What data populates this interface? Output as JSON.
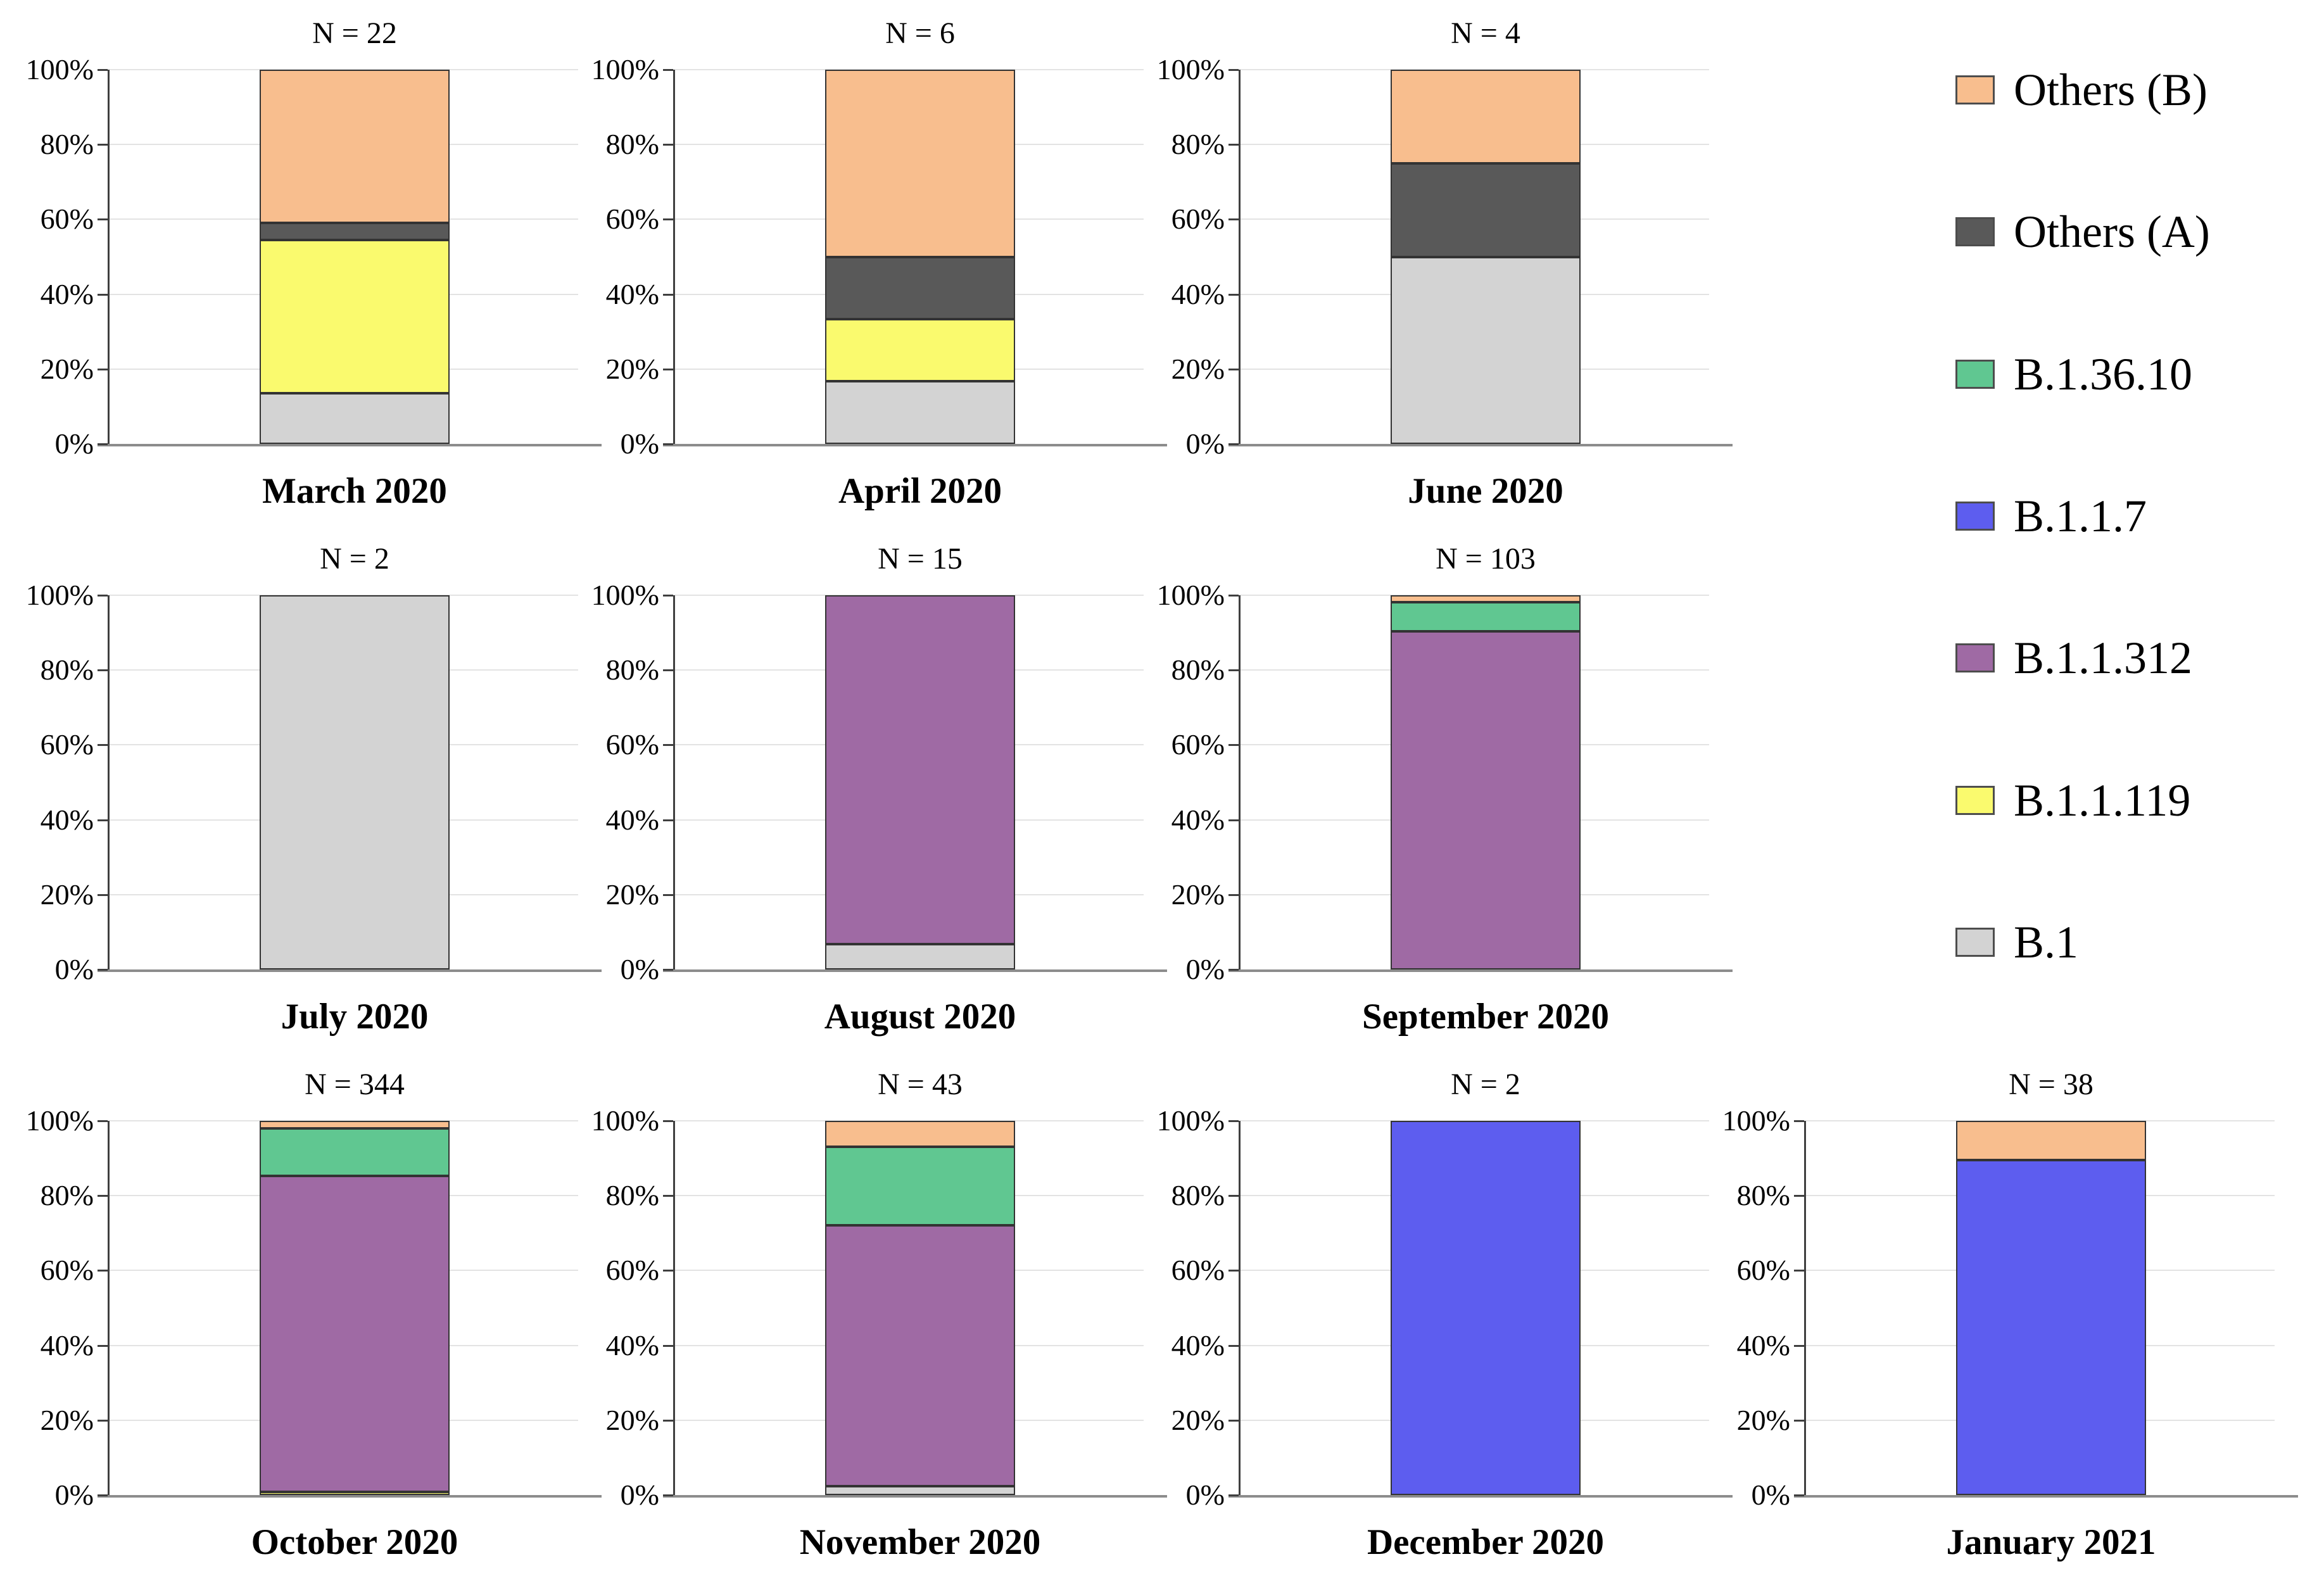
{
  "figure": {
    "background": "#ffffff",
    "description": "Monthly 100% stacked bar charts of lineage frequencies, March 2020 - January 2021"
  },
  "chart_data": {
    "type": "bar",
    "subtype": "stacked-100-percent",
    "grid_on": true,
    "ylim": [
      0,
      100
    ],
    "yticks": [
      "0%",
      "20%",
      "40%",
      "60%",
      "80%",
      "100%"
    ],
    "legend_position": "right",
    "series_order_bottom_to_top": [
      "B.1",
      "B.1.1.119",
      "B.1.1.312",
      "B.1.1.7",
      "B.1.36.10",
      "Others (A)",
      "Others (B)"
    ],
    "colors": {
      "Others (B)": "#F8BE8E",
      "Others (A)": "#595959",
      "B.1.36.10": "#60C791",
      "B.1.1.7": "#5D5DEF",
      "B.1.1.312": "#9F6AA4",
      "B.1.1.119": "#FAFA6E",
      "B.1": "#D3D3D3"
    },
    "legend_entries": [
      "Others (B)",
      "Others (A)",
      "B.1.36.10",
      "B.1.1.7",
      "B.1.1.312",
      "B.1.1.119",
      "B.1"
    ],
    "charts": [
      {
        "month": "March 2020",
        "n_label": "N = 22",
        "n": 22,
        "row": 0,
        "col": 0,
        "segments": [
          {
            "series": "B.1",
            "value": 13.6
          },
          {
            "series": "B.1.1.119",
            "value": 40.9
          },
          {
            "series": "Others (A)",
            "value": 4.6
          },
          {
            "series": "Others (B)",
            "value": 40.9
          }
        ]
      },
      {
        "month": "April 2020",
        "n_label": "N = 6",
        "n": 6,
        "row": 0,
        "col": 1,
        "segments": [
          {
            "series": "B.1",
            "value": 16.7
          },
          {
            "series": "B.1.1.119",
            "value": 16.6
          },
          {
            "series": "Others (A)",
            "value": 16.7
          },
          {
            "series": "Others (B)",
            "value": 50.0
          }
        ]
      },
      {
        "month": "June 2020",
        "n_label": "N = 4",
        "n": 4,
        "row": 0,
        "col": 2,
        "segments": [
          {
            "series": "B.1",
            "value": 50.0
          },
          {
            "series": "Others (A)",
            "value": 25.0
          },
          {
            "series": "Others (B)",
            "value": 25.0
          }
        ]
      },
      {
        "month": "July 2020",
        "n_label": "N = 2",
        "n": 2,
        "row": 1,
        "col": 0,
        "segments": [
          {
            "series": "B.1",
            "value": 100.0
          }
        ]
      },
      {
        "month": "August 2020",
        "n_label": "N = 15",
        "n": 15,
        "row": 1,
        "col": 1,
        "segments": [
          {
            "series": "B.1",
            "value": 6.7
          },
          {
            "series": "B.1.1.312",
            "value": 93.3
          }
        ]
      },
      {
        "month": "September 2020",
        "n_label": "N = 103",
        "n": 103,
        "row": 1,
        "col": 2,
        "segments": [
          {
            "series": "B.1.1.312",
            "value": 90.3
          },
          {
            "series": "B.1.36.10",
            "value": 7.8
          },
          {
            "series": "Others (B)",
            "value": 1.9
          }
        ]
      },
      {
        "month": "October 2020",
        "n_label": "N = 344",
        "n": 344,
        "row": 2,
        "col": 0,
        "segments": [
          {
            "series": "B.1.1.119",
            "value": 0.9
          },
          {
            "series": "B.1.1.312",
            "value": 84.3
          },
          {
            "series": "B.1.36.10",
            "value": 12.8
          },
          {
            "series": "Others (B)",
            "value": 2.0
          }
        ]
      },
      {
        "month": "November 2020",
        "n_label": "N = 43",
        "n": 43,
        "row": 2,
        "col": 1,
        "segments": [
          {
            "series": "B.1",
            "value": 2.3
          },
          {
            "series": "B.1.1.312",
            "value": 69.8
          },
          {
            "series": "B.1.36.10",
            "value": 20.9
          },
          {
            "series": "Others (B)",
            "value": 7.0
          }
        ]
      },
      {
        "month": "December 2020",
        "n_label": "N = 2",
        "n": 2,
        "row": 2,
        "col": 2,
        "segments": [
          {
            "series": "B.1.1.7",
            "value": 100.0
          }
        ]
      },
      {
        "month": "January 2021",
        "n_label": "N = 38",
        "n": 38,
        "row": 2,
        "col": 3,
        "segments": [
          {
            "series": "B.1.1.7",
            "value": 89.5
          },
          {
            "series": "Others (B)",
            "value": 10.5
          }
        ]
      }
    ]
  }
}
